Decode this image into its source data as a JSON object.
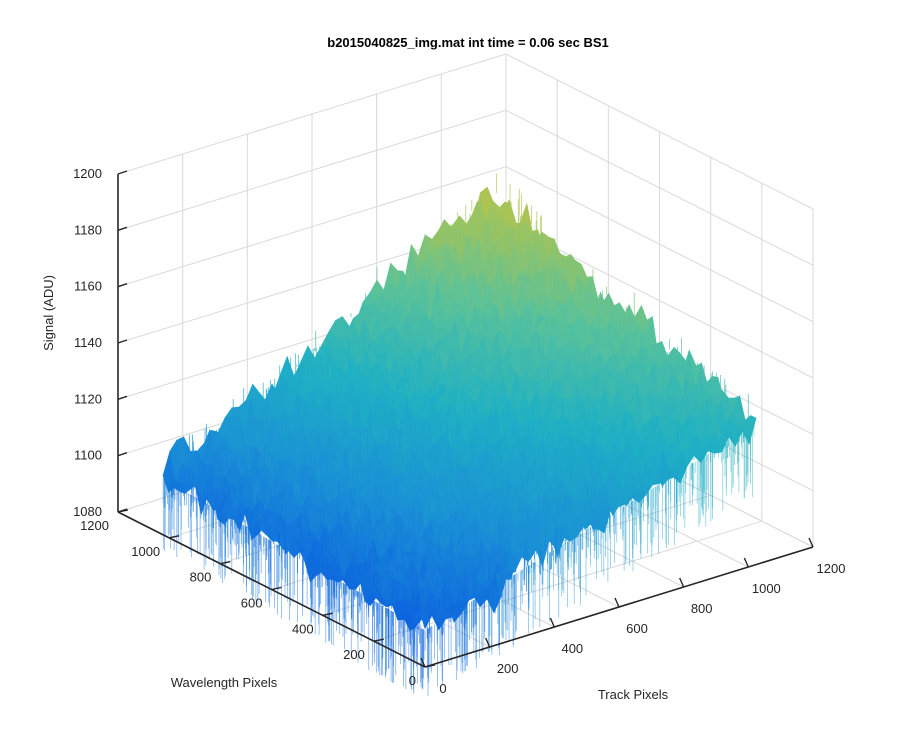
{
  "chart_data": {
    "type": "surface3d",
    "title": "b2015040825_img.mat int time = 0.06 sec   BS1",
    "xlabel": "Track Pixels",
    "ylabel": "Wavelength Pixels",
    "zlabel": "Signal (ADU)",
    "xlim": [
      0,
      1200
    ],
    "ylim": [
      0,
      1200
    ],
    "zlim": [
      1080,
      1200
    ],
    "xticks": [
      "0",
      "200",
      "400",
      "600",
      "800",
      "1000",
      "1200"
    ],
    "yticks": [
      "0",
      "200",
      "400",
      "600",
      "800",
      "1000",
      "1200"
    ],
    "zticks": [
      "1080",
      "1100",
      "1120",
      "1140",
      "1160",
      "1180",
      "1200"
    ],
    "grid": true,
    "colormap": "parula",
    "colormap_stops": [
      "#0b5ee0",
      "#1a8fd6",
      "#1fb0c4",
      "#5ac29a",
      "#a8c455",
      "#e3b940"
    ],
    "surface": {
      "x_range": [
        0,
        1024
      ],
      "y_range": [
        0,
        1024
      ],
      "corner_values": {
        "x0_y0": 1093,
        "x1024_y0": 1130,
        "x0_y1024": 1100,
        "x1024_y1024": 1166
      },
      "noise_amplitude": 8
    }
  }
}
